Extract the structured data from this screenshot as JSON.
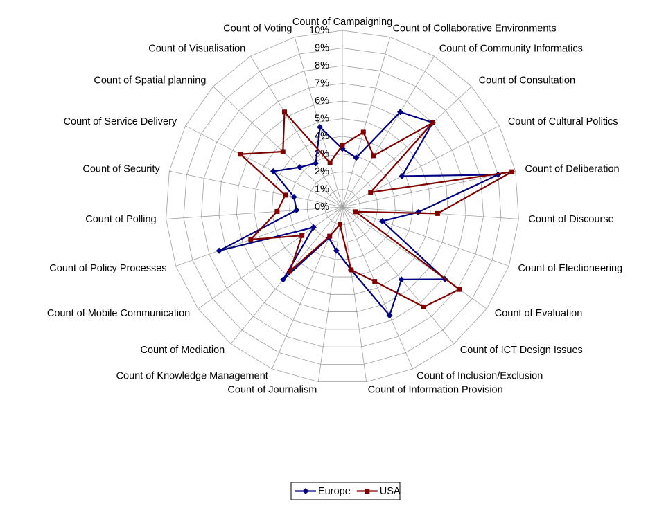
{
  "chart_data": {
    "type": "radar",
    "categories": [
      "Count of Campaigning",
      "Count of Collaborative Environments",
      "Count of Community Informatics",
      "Count of Consultation",
      "Count of Cultural Politics",
      "Count of Deliberation",
      "Count of Discourse",
      "Count of Electioneering",
      "Count of Evaluation",
      "Count of ICT Design Issues",
      "Count of Inclusion/Exclusion",
      "Count of Information Provision",
      "Count of Journalism",
      "Count of Knowledge Management",
      "Count of Mediation",
      "Count of Mobile Communication",
      "Count of Policy Processes",
      "Count of Polling",
      "Count of Security",
      "Count of Service Delivery",
      "Count of Spatial planning",
      "Count of Visualisation",
      "Count of Voting"
    ],
    "series": [
      {
        "name": "Europe",
        "color": "#000080",
        "marker": "diamond",
        "values": [
          3.3,
          2.9,
          6.3,
          7.0,
          3.8,
          9.0,
          4.3,
          2.4,
          7.1,
          5.3,
          6.7,
          3.6,
          2.5,
          1.9,
          5.3,
          2.0,
          7.4,
          2.6,
          2.8,
          4.4,
          3.3,
          2.9,
          4.7
        ]
      },
      {
        "name": "USA",
        "color": "#800000",
        "marker": "square",
        "values": [
          3.5,
          4.4,
          3.4,
          7.0,
          1.8,
          9.8,
          5.4,
          0.8,
          8.1,
          7.3,
          4.6,
          3.6,
          1.0,
          1.8,
          4.7,
          2.8,
          5.5,
          3.7,
          3.3,
          6.5,
          4.6,
          6.3,
          2.6
        ]
      }
    ],
    "ylim": [
      0,
      10
    ],
    "yticks": [
      {
        "value": 0,
        "label": "0%"
      },
      {
        "value": 1,
        "label": "1%"
      },
      {
        "value": 2,
        "label": "2%"
      },
      {
        "value": 3,
        "label": "3%"
      },
      {
        "value": 4,
        "label": "4%"
      },
      {
        "value": 5,
        "label": "5%"
      },
      {
        "value": 6,
        "label": "6%"
      },
      {
        "value": 7,
        "label": "7%"
      },
      {
        "value": 8,
        "label": "8%"
      },
      {
        "value": 9,
        "label": "9%"
      },
      {
        "value": 10,
        "label": "10%"
      }
    ],
    "grid": true,
    "legend": "bottom"
  }
}
